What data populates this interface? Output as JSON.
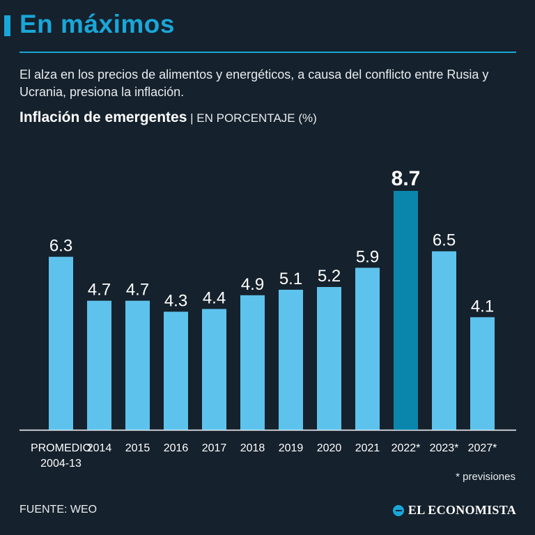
{
  "header": {
    "title": "En máximos",
    "subtitle": "El alza en los precios de alimentos y energéticos, a causa del conflicto entre Rusia y Ucrania, presiona la inflación.",
    "chart_title": "Inflación de emergentes",
    "chart_unit": " | EN PORCENTAJE (%)"
  },
  "colors": {
    "accent": "#19a7d9",
    "bar": "#5dc3ec",
    "bar_highlight": "#0a86ad",
    "background": "#15212c"
  },
  "chart_data": {
    "type": "bar",
    "title": "Inflación de emergentes",
    "ylabel": "EN PORCENTAJE (%)",
    "xlabel": "",
    "ylim": [
      0,
      8.7
    ],
    "grid": false,
    "categories": [
      "PROMEDIO\n2004-13",
      "2014",
      "2015",
      "2016",
      "2017",
      "2018",
      "2019",
      "2020",
      "2021",
      "2022*",
      "2023*",
      "2027*"
    ],
    "values": [
      6.3,
      4.7,
      4.7,
      4.3,
      4.4,
      4.9,
      5.1,
      5.2,
      5.9,
      8.7,
      6.5,
      4.1
    ],
    "value_labels": [
      "6.3",
      "4.7",
      "4.7",
      "4.3",
      "4.4",
      "4.9",
      "5.1",
      "5.2",
      "5.9",
      "8.7",
      "6.5",
      "4.1"
    ],
    "highlight": "2022*"
  },
  "footer": {
    "note": "* previsiones",
    "source": "FUENTE: WEO",
    "brand": "EL ECONOMISTA"
  }
}
